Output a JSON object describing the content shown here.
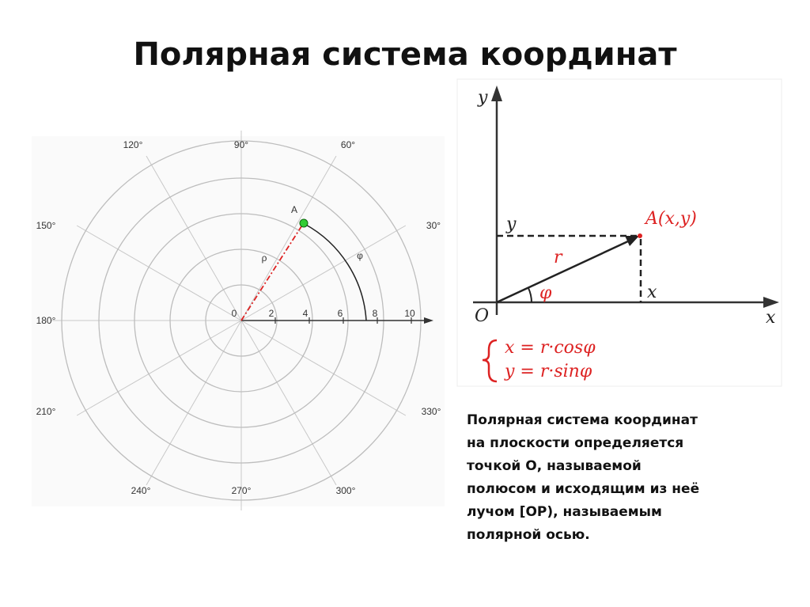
{
  "title": "Полярная система координат",
  "polar_diagram": {
    "angle_labels": [
      "90°",
      "60°",
      "30°",
      "180°",
      "150°",
      "120°",
      "210°",
      "240°",
      "270°",
      "300°",
      "330°"
    ],
    "origin_label": "0",
    "radius_labels": [
      "2",
      "4",
      "6",
      "8",
      "10"
    ],
    "point_label": "A",
    "radius_symbol": "ρ",
    "angle_symbol": "φ"
  },
  "cartesian_diagram": {
    "y_axis_label": "y",
    "y_projection_label": "y",
    "x_projection_label": "x",
    "x_axis_label": "x",
    "origin_label": "O",
    "point_label": "A(x,y)",
    "radius_symbol": "r",
    "angle_symbol": "φ",
    "formulas": [
      "x = r·cosφ",
      "y = r·sinφ"
    ]
  },
  "description": [
    "Полярная система координат",
    "на плоскости определяется",
    "точкой О, называемой",
    "полюсом и исходящим из неё",
    "лучом [OP), называемым",
    "полярной осью."
  ]
}
